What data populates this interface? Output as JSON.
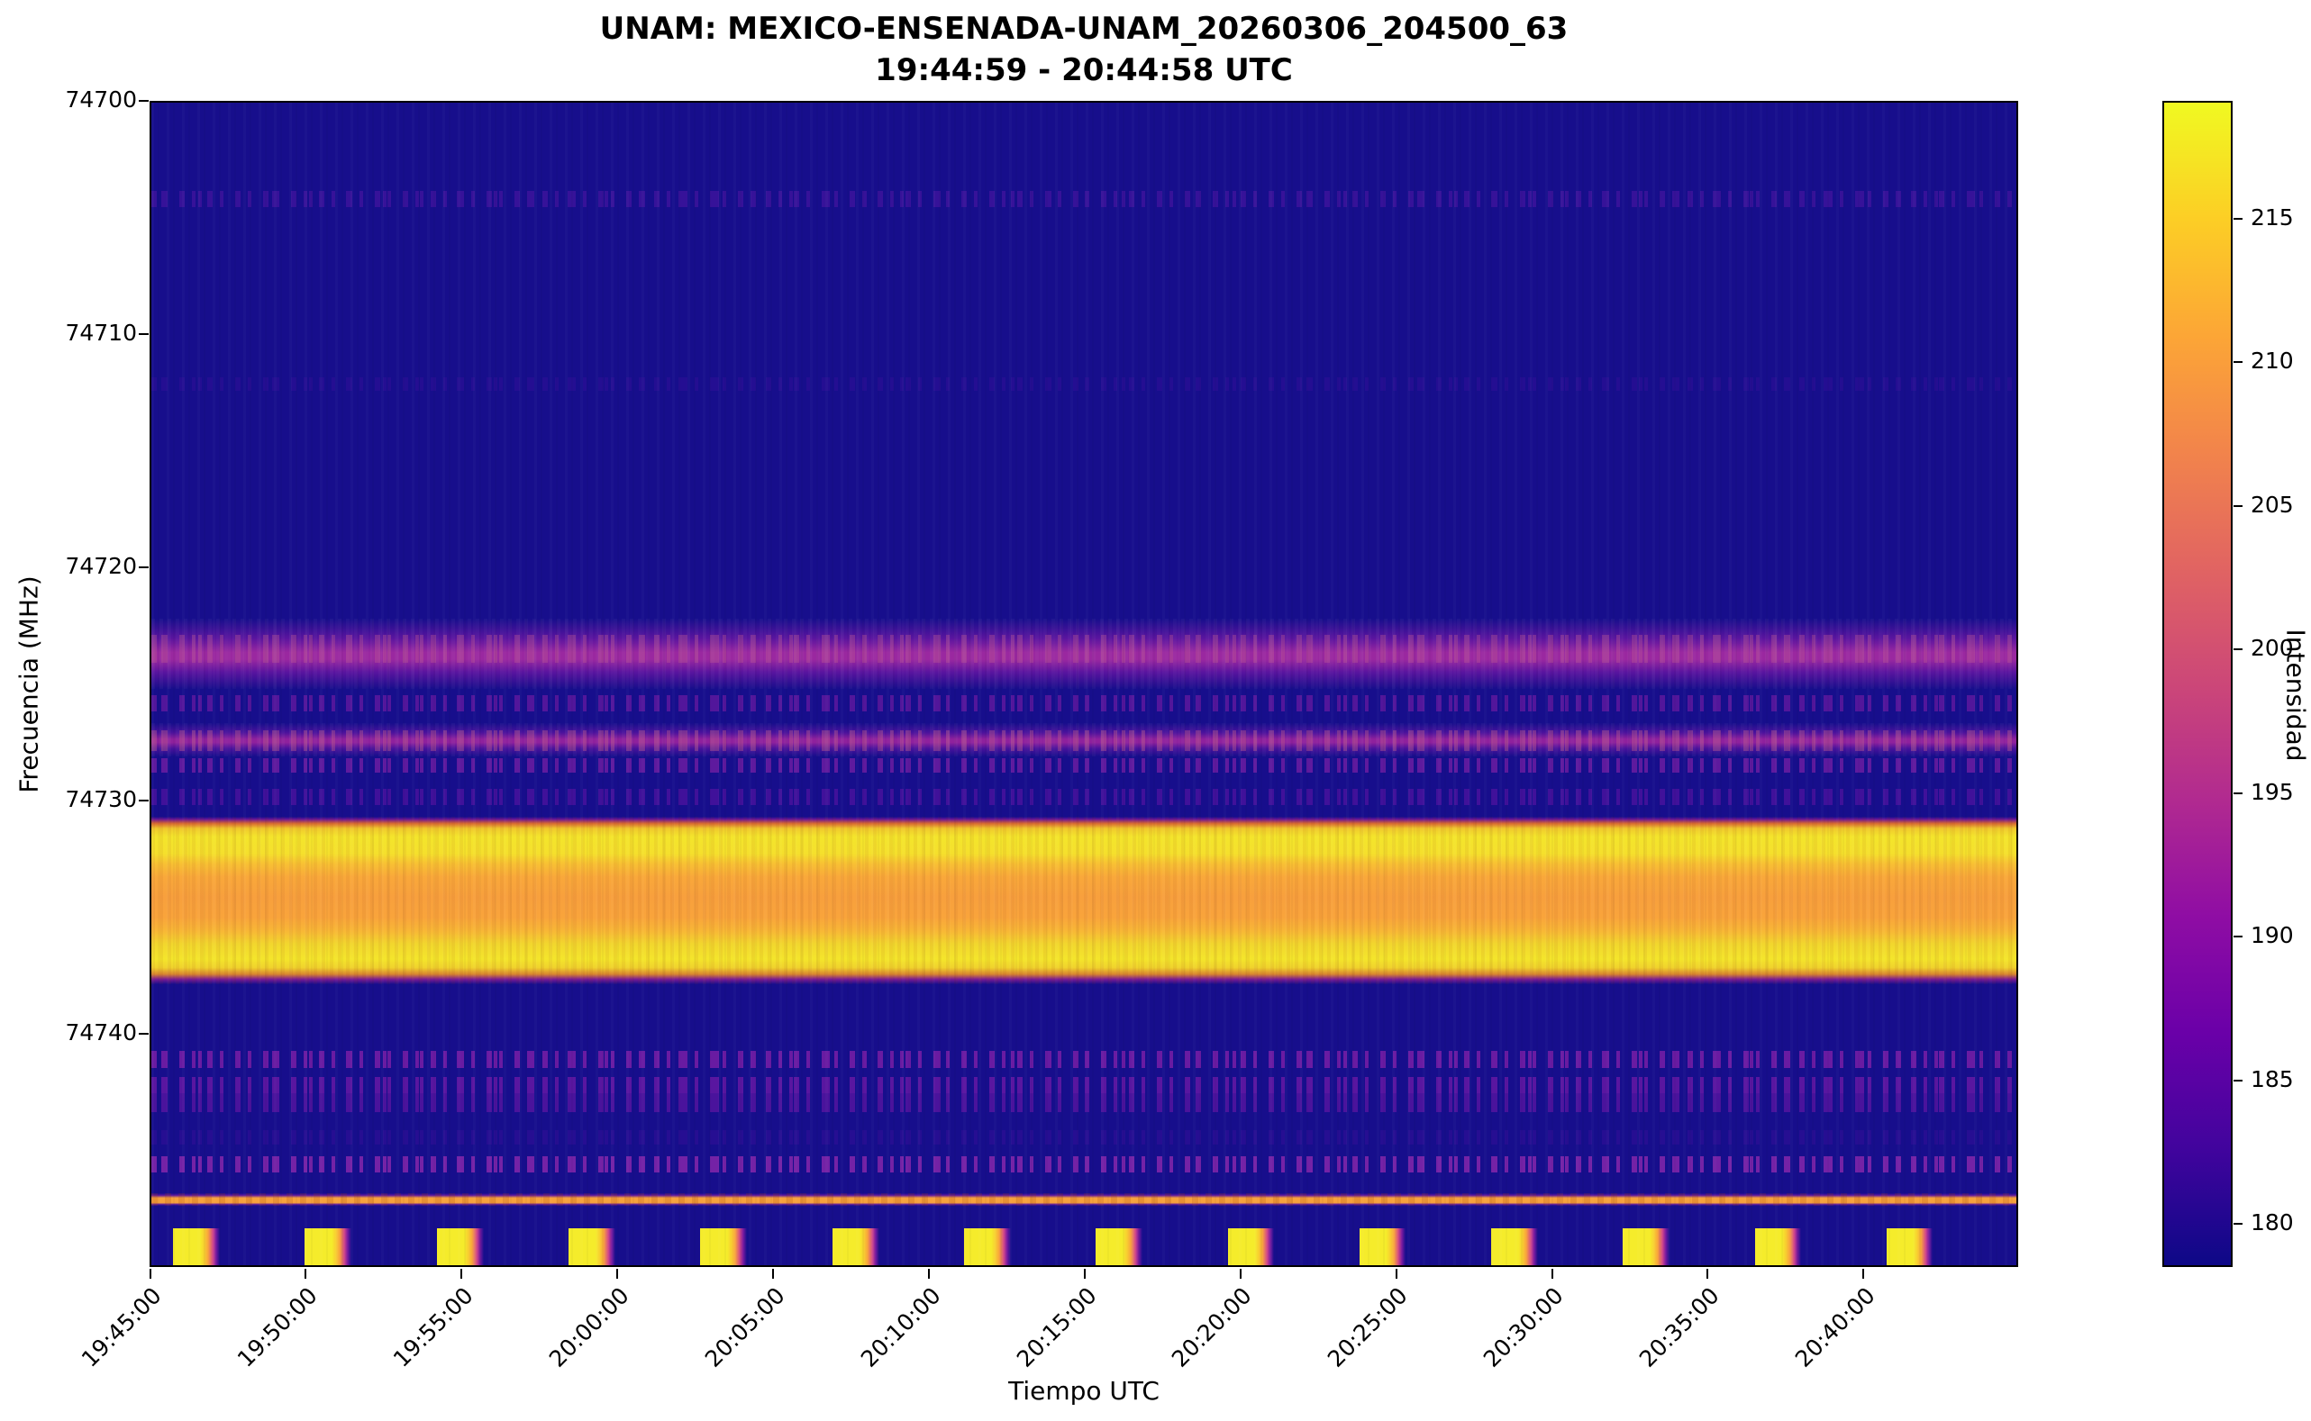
{
  "title": {
    "line1": "UNAM: MEXICO-ENSENADA-UNAM_20260306_204500_63",
    "line2": "19:44:59 - 20:44:58 UTC"
  },
  "chart_data": {
    "type": "heatmap",
    "title": "UNAM: MEXICO-ENSENADA-UNAM_20260306_204500_63",
    "subtitle": "19:44:59 - 20:44:58 UTC",
    "xlabel": "Tiempo UTC",
    "ylabel": "Frecuencia (MHz)",
    "x_start": "19:44:59",
    "x_end": "20:44:58",
    "x_tick_labels": [
      "19:45:00",
      "19:50:00",
      "19:55:00",
      "20:00:00",
      "20:05:00",
      "20:10:00",
      "20:15:00",
      "20:20:00",
      "20:25:00",
      "20:30:00",
      "20:35:00",
      "20:40:00"
    ],
    "y_min_mhz": 74700,
    "y_max_mhz": 74750,
    "y_axis_inverted": true,
    "y_tick_labels": [
      "74700",
      "74710",
      "74720",
      "74730",
      "74740"
    ],
    "colorbar": {
      "label": "Intensidad",
      "ticks": [
        215,
        210,
        205,
        200,
        195,
        190,
        185,
        180
      ],
      "vmin": 178.5,
      "vmax": 219.1,
      "colormap": "plasma"
    },
    "background": {
      "intensity_est": 179,
      "color": "#170e8c"
    },
    "bands": [
      {
        "f0": 74703.8,
        "f1": 74704.5,
        "style": "speckle",
        "color": "#3c139c",
        "alpha": 0.85,
        "intensity_est": 184,
        "desc": "faint narrowband speckled line"
      },
      {
        "f0": 74711.8,
        "f1": 74712.4,
        "style": "speckle",
        "color": "#2e0f96",
        "alpha": 0.6,
        "intensity_est": 181,
        "desc": "very faint speckled line"
      },
      {
        "f0": 74722.2,
        "f1": 74725.2,
        "style": "glow",
        "color": "#5a149f",
        "core": "#9a28a0",
        "alpha": 1,
        "intensity_est": 196,
        "desc": "broad diffuse purple band"
      },
      {
        "f0": 74722.9,
        "f1": 74724.1,
        "style": "speckle",
        "color": "#c05e93",
        "alpha": 0.35,
        "intensity_est": 201,
        "desc": "warm flecks inside diffuse band"
      },
      {
        "f0": 74725.5,
        "f1": 74726.2,
        "style": "speckle",
        "color": "#61189f",
        "alpha": 0.8,
        "intensity_est": 188,
        "desc": "speckled purple line"
      },
      {
        "f0": 74726.7,
        "f1": 74728.1,
        "style": "glow",
        "color": "#4a129c",
        "core": "#8f219d",
        "alpha": 1,
        "intensity_est": 194,
        "desc": "second diffuse purple band"
      },
      {
        "f0": 74727.0,
        "f1": 74727.9,
        "style": "speckle",
        "color": "#c25f8c",
        "alpha": 0.4,
        "intensity_est": 200,
        "desc": "bright flecks in second band"
      },
      {
        "f0": 74728.2,
        "f1": 74728.8,
        "style": "speckle",
        "color": "#7c20a6",
        "alpha": 0.7,
        "intensity_est": 190,
        "desc": "speckled purple line"
      },
      {
        "f0": 74729.5,
        "f1": 74730.2,
        "style": "speckle",
        "color": "#45129c",
        "alpha": 0.9,
        "intensity_est": 186,
        "desc": "fine dense speckle row"
      },
      {
        "f0": 74730.7,
        "f1": 74737.9,
        "style": "bright",
        "color": "#f4e62a",
        "alpha": 1,
        "intensity_est": 217,
        "desc": "strong saturated emission band: yellow edges, orange core"
      },
      {
        "f0": 74740.8,
        "f1": 74741.5,
        "style": "speckle",
        "color": "#721da5",
        "alpha": 0.9,
        "intensity_est": 190,
        "desc": "speckled purple line"
      },
      {
        "f0": 74741.9,
        "f1": 74742.6,
        "style": "speckle",
        "color": "#5d17a2",
        "alpha": 0.95,
        "intensity_est": 188,
        "desc": "dense speckled band"
      },
      {
        "f0": 74742.6,
        "f1": 74743.4,
        "style": "speckle",
        "color": "#50149e",
        "alpha": 0.9,
        "intensity_est": 186,
        "desc": "dense fine speckle band"
      },
      {
        "f0": 74744.2,
        "f1": 74744.8,
        "style": "speckle",
        "color": "#2d0e95",
        "alpha": 0.7,
        "intensity_est": 181,
        "desc": "sparse faint dashes"
      },
      {
        "f0": 74745.3,
        "f1": 74746.0,
        "style": "speckle",
        "color": "#8526ab",
        "alpha": 0.85,
        "intensity_est": 191,
        "desc": "row of purple dashes"
      },
      {
        "f0": 74746.9,
        "f1": 74747.45,
        "style": "line",
        "color": "#f7a23c",
        "alpha": 1,
        "intensity_est": 211,
        "desc": "continuous narrow orange line"
      }
    ],
    "calibration_pulses": {
      "count": 14,
      "period_seconds": 254,
      "duration_seconds": 55,
      "fade_seconds": 35,
      "freq_start_mhz": 74748.4,
      "freq_end_mhz": 74750.0,
      "peak_intensity_est": 218,
      "times_utc": [
        "19:45:41",
        "19:49:55",
        "19:54:10",
        "19:58:24",
        "20:02:38",
        "20:06:53",
        "20:11:07",
        "20:15:21",
        "20:19:36",
        "20:23:50",
        "20:28:04",
        "20:32:19",
        "20:36:33",
        "20:40:47"
      ]
    }
  }
}
